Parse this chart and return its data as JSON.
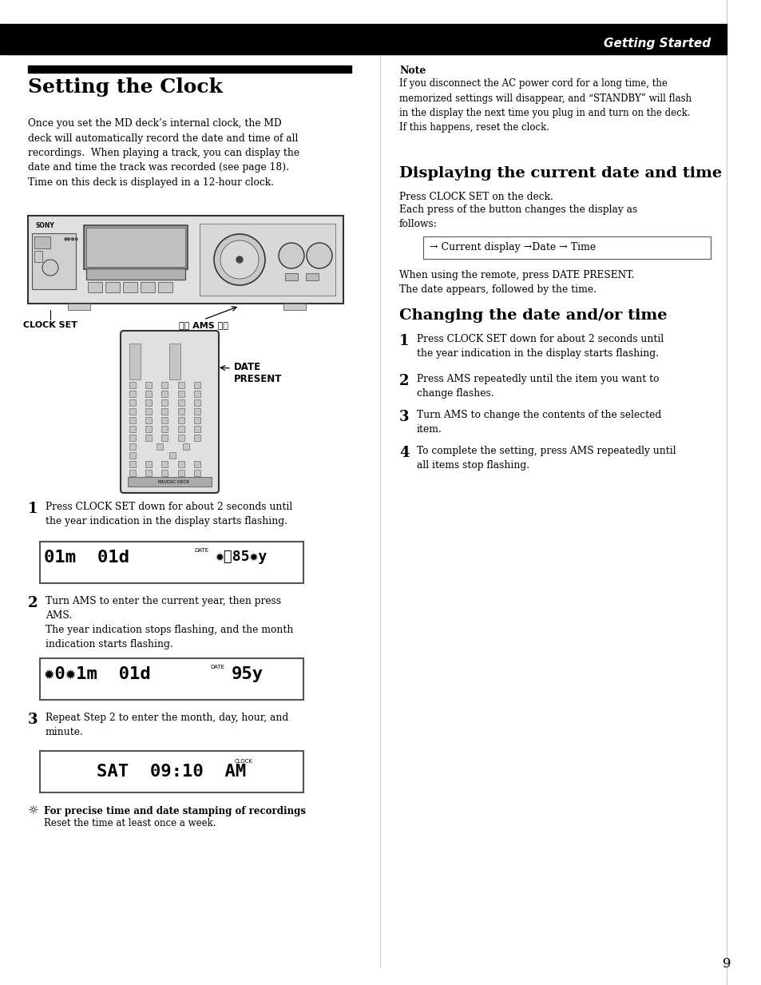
{
  "page_bg": "#ffffff",
  "header_bg": "#000000",
  "header_text": "Getting Started",
  "header_text_color": "#ffffff",
  "title_left": "Setting the Clock",
  "body_left_intro": "Once you set the MD deck’s internal clock, the MD\ndeck will automatically record the date and time of all\nrecordings.  When playing a track, you can display the\ndate and time the track was recorded (see page 18).\nTime on this deck is displayed in a 12-hour clock.",
  "note_title": "Note",
  "note_text": "If you disconnect the AC power cord for a long time, the\nmemorized settings will disappear, and “STANDBY” will flash\nin the display the next time you plug in and turn on the deck.\nIf this happens, reset the clock.",
  "title_right_1": "Displaying the current date and time",
  "right_para_1a": "Press CLOCK SET on the deck.",
  "right_para_1b": "Each press of the button changes the display as\nfollows:",
  "display_arrow_text": "→ Current display →Date → Time",
  "right_para_2": "When using the remote, press DATE PRESENT.\nThe date appears, followed by the time.",
  "title_right_2": "Changing the date and/or time",
  "change_step1": "Press CLOCK SET down for about 2 seconds until\nthe year indication in the display starts flashing.",
  "change_step2": "Press AMS repeatedly until the item you want to\nchange flashes.",
  "change_step3": "Turn AMS to change the contents of the selected\nitem.",
  "change_step4": "To complete the setting, press AMS repeatedly until\nall items stop flashing.",
  "step1_text": "Press CLOCK SET down for about 2 seconds until\nthe year indication in the display starts flashing.",
  "step2_text": "Turn AMS to enter the current year, then press\nAMS.\nThe year indication stops flashing, and the month\nindication starts flashing.",
  "step3_text": "Repeat Step 2 to enter the month, day, hour, and\nminute.",
  "tip_bold": "For precise time and date stamping of recordings",
  "tip_normal": "Reset the time at least once a week.",
  "page_number": "9",
  "clock_label": "CLOCK SET",
  "ams_label": "⏮⏮ AMS ⏭⏭",
  "date_present_label": "DATE\nPRESENT"
}
